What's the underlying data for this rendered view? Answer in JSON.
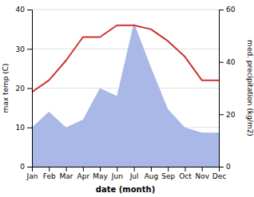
{
  "chart_data": {
    "type": "line",
    "categories": [
      "Jan",
      "Feb",
      "Mar",
      "Apr",
      "May",
      "Jun",
      "Jul",
      "Aug",
      "Sep",
      "Oct",
      "Nov",
      "Dec"
    ],
    "xlabel": "date (month)",
    "ylabel": "max temp (C)",
    "y2label": "med. precipitation (kg/m2)",
    "ylim": [
      0,
      40
    ],
    "yticks": [
      0,
      10,
      20,
      30,
      40
    ],
    "y2lim": [
      0,
      60
    ],
    "y2ticks": [
      0,
      20,
      40,
      60
    ],
    "grid": true,
    "series": [
      {
        "type": "area",
        "axis": "y2",
        "color": "#aab8e8",
        "values": [
          15,
          21,
          15,
          18,
          30,
          27,
          55,
          38,
          22,
          15,
          13,
          13
        ]
      },
      {
        "type": "line",
        "color": "#cc3333",
        "values": [
          19,
          22,
          27,
          33,
          33,
          36,
          36,
          35,
          32,
          28,
          22,
          22
        ]
      }
    ]
  }
}
